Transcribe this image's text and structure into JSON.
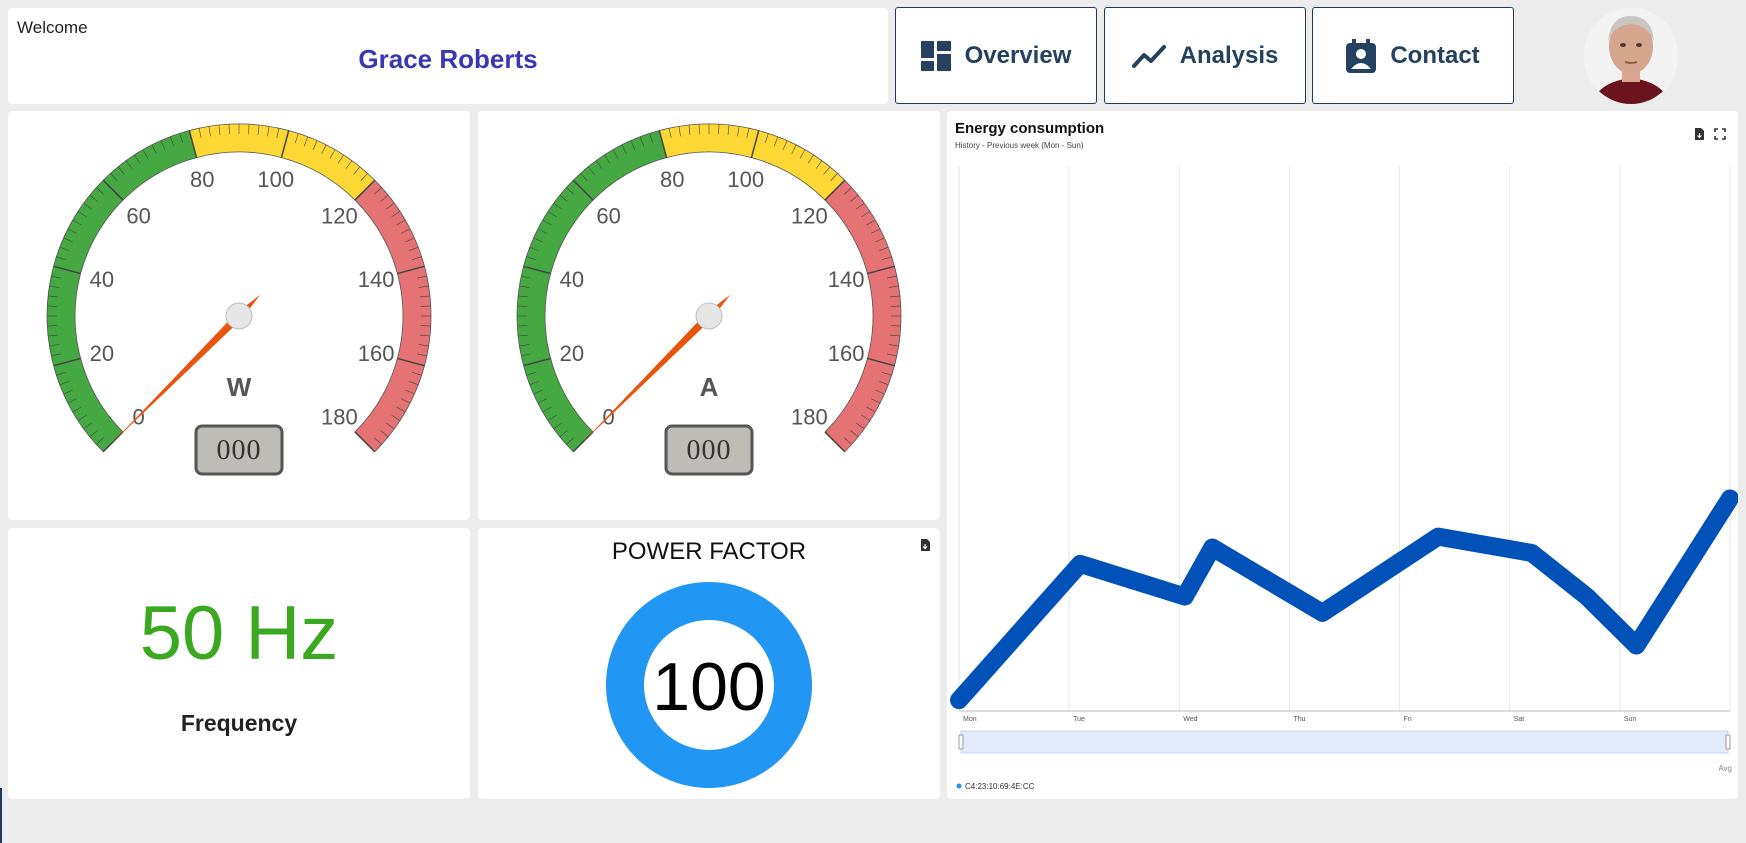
{
  "header": {
    "welcome_label": "Welcome",
    "user_name": "Grace Roberts",
    "nav": [
      {
        "label": "Overview",
        "icon": "dashboard-icon"
      },
      {
        "label": "Analysis",
        "icon": "trending-up-icon"
      },
      {
        "label": "Contact",
        "icon": "contact-card-icon"
      }
    ],
    "avatar": "user-avatar-photo"
  },
  "gauges": [
    {
      "unit": "W",
      "value": 0,
      "display": "000",
      "min": 0,
      "max": 180,
      "ticks": [
        "0",
        "20",
        "40",
        "60",
        "80",
        "100",
        "120",
        "140",
        "160",
        "180"
      ]
    },
    {
      "unit": "A",
      "value": 0,
      "display": "000",
      "min": 0,
      "max": 180,
      "ticks": [
        "0",
        "20",
        "40",
        "60",
        "80",
        "100",
        "120",
        "140",
        "160",
        "180"
      ]
    }
  ],
  "gauge_zones": [
    {
      "from": 0,
      "to": 80,
      "color": "#46a843"
    },
    {
      "from": 80,
      "to": 120,
      "color": "#fdd835"
    },
    {
      "from": 120,
      "to": 180,
      "color": "#e57373"
    }
  ],
  "frequency": {
    "value": "50 Hz",
    "label": "Frequency",
    "color": "#3aa821"
  },
  "power_factor": {
    "title": "POWER FACTOR",
    "value": "100",
    "ring_color": "#2196f3",
    "export_icon": "file-download-icon"
  },
  "energy_chart": {
    "title": "Energy consumption",
    "subtitle": "History - Previous week (Mon - Sun)",
    "toolbar_icons": [
      "file-download-icon",
      "fullscreen-icon"
    ],
    "avg_label": "Avg",
    "legend": "C4:23:10:69:4E:CC",
    "line_color": "#0052b8"
  },
  "chart_data": {
    "type": "line",
    "categories": [
      "Mon",
      "Tue",
      "Wed",
      "Thu",
      "Fri",
      "Sat",
      "Sun"
    ],
    "x_tick_labels": [
      "Mon",
      "Tue",
      "Wed",
      "Thu",
      "Fri",
      "Sat",
      "Sun"
    ],
    "series": [
      {
        "name": "C4:23:10:69:4E:CC",
        "x": [
          0,
          1.1,
          2.05,
          2.3,
          3.3,
          4.35,
          5.2,
          5.7,
          6.15,
          7.0
        ],
        "values": [
          2,
          27,
          21,
          30,
          18,
          32,
          29,
          21,
          12,
          39
        ]
      }
    ],
    "ylim": [
      0,
      100
    ],
    "grid": "vertical",
    "legend_position": "bottom-left"
  }
}
